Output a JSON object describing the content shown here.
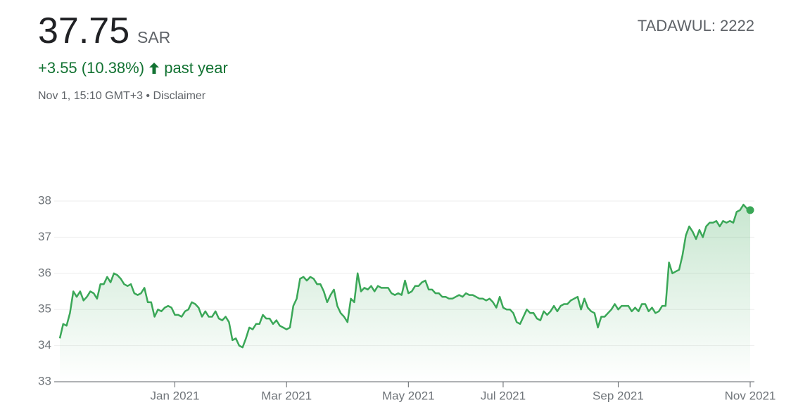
{
  "header": {
    "price": "37.75",
    "currency": "SAR",
    "change": "+3.55 (10.38%)",
    "period": "past year",
    "timestamp": "Nov 1, 15:10 GMT+3 • ",
    "disclaimer": "Disclaimer",
    "exchange": "TADAWUL: 2222"
  },
  "chart_data": {
    "type": "line",
    "color": "#3aa757",
    "grid": true,
    "ylim": [
      33,
      38
    ],
    "yticks": [
      33,
      34,
      35,
      36,
      37,
      38
    ],
    "xlim": [
      0,
      204
    ],
    "xticks": [
      {
        "value": 34,
        "label": "Jan 2021"
      },
      {
        "value": 67,
        "label": "Mar 2021"
      },
      {
        "value": 103,
        "label": "May 2021"
      },
      {
        "value": 131,
        "label": "Jul 2021"
      },
      {
        "value": 165,
        "label": "Sep 2021"
      },
      {
        "value": 204,
        "label": "Nov 2021"
      }
    ],
    "values": [
      34.2,
      34.6,
      34.55,
      34.9,
      35.5,
      35.35,
      35.5,
      35.25,
      35.35,
      35.5,
      35.45,
      35.3,
      35.7,
      35.7,
      35.9,
      35.75,
      36.0,
      35.95,
      35.85,
      35.7,
      35.65,
      35.7,
      35.45,
      35.4,
      35.45,
      35.6,
      35.2,
      35.2,
      34.8,
      35.0,
      34.95,
      35.05,
      35.1,
      35.05,
      34.85,
      34.85,
      34.8,
      34.95,
      35.0,
      35.2,
      35.15,
      35.05,
      34.8,
      34.95,
      34.8,
      34.8,
      34.95,
      34.75,
      34.7,
      34.8,
      34.65,
      34.15,
      34.2,
      34.0,
      33.95,
      34.2,
      34.5,
      34.45,
      34.6,
      34.6,
      34.85,
      34.75,
      34.75,
      34.6,
      34.7,
      34.55,
      34.5,
      34.45,
      34.5,
      35.1,
      35.3,
      35.85,
      35.9,
      35.8,
      35.9,
      35.85,
      35.7,
      35.7,
      35.5,
      35.2,
      35.4,
      35.55,
      35.1,
      34.9,
      34.8,
      34.65,
      35.3,
      35.2,
      36.0,
      35.5,
      35.6,
      35.55,
      35.65,
      35.5,
      35.65,
      35.6,
      35.6,
      35.6,
      35.45,
      35.4,
      35.45,
      35.4,
      35.8,
      35.45,
      35.5,
      35.65,
      35.65,
      35.75,
      35.8,
      35.55,
      35.55,
      35.45,
      35.45,
      35.35,
      35.35,
      35.3,
      35.3,
      35.35,
      35.4,
      35.35,
      35.45,
      35.4,
      35.4,
      35.35,
      35.3,
      35.3,
      35.25,
      35.3,
      35.2,
      35.05,
      35.35,
      35.05,
      35.0,
      35.0,
      34.9,
      34.65,
      34.6,
      34.8,
      35.0,
      34.9,
      34.9,
      34.75,
      34.7,
      34.95,
      34.85,
      34.95,
      35.1,
      34.95,
      35.1,
      35.15,
      35.15,
      35.25,
      35.3,
      35.35,
      35.0,
      35.3,
      35.05,
      34.95,
      34.9,
      34.5,
      34.8,
      34.8,
      34.9,
      35.0,
      35.15,
      35.0,
      35.1,
      35.1,
      35.1,
      34.95,
      35.05,
      34.95,
      35.15,
      35.15,
      34.95,
      35.05,
      34.9,
      34.95,
      35.1,
      35.1,
      36.3,
      36.0,
      36.05,
      36.1,
      36.5,
      37.05,
      37.3,
      37.15,
      36.95,
      37.2,
      37.0,
      37.3,
      37.4,
      37.4,
      37.45,
      37.3,
      37.45,
      37.4,
      37.45,
      37.4,
      37.7,
      37.75,
      37.9,
      37.8,
      37.75
    ]
  }
}
